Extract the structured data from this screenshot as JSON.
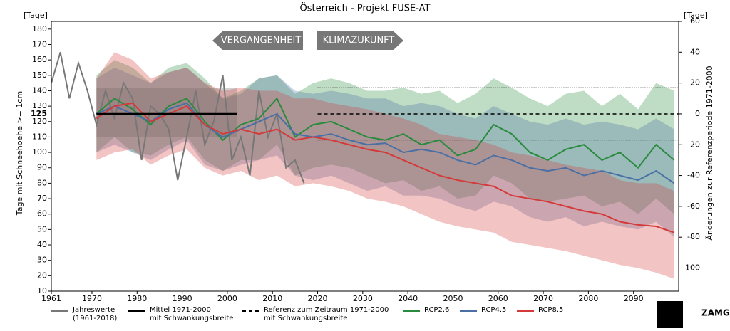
{
  "chart_data": {
    "type": "line",
    "title": "Österreich - Projekt FUSE-AT",
    "ylabel": "Tage mit Schneehoehe >= 1cm",
    "y2label": "Änderungen zur Referenzperiode 1971-2000",
    "yunit": "[Tage]",
    "y2unit": "[Tage]",
    "annotations": [
      "VERGANGENHEIT",
      "KLIMAZUKUNFT"
    ],
    "logo": "ZAMG",
    "xlim": [
      1961,
      2100
    ],
    "xticks": [
      1961,
      1970,
      1980,
      1990,
      2000,
      2010,
      2020,
      2030,
      2040,
      2050,
      2060,
      2070,
      2080,
      2090
    ],
    "ylim": [
      10,
      185
    ],
    "yticks": [
      10,
      20,
      30,
      40,
      50,
      60,
      70,
      80,
      90,
      100,
      110,
      120,
      130,
      140,
      150,
      160,
      170,
      180
    ],
    "y2lim": [
      -115,
      60
    ],
    "y2ticks": [
      -100,
      -80,
      -60,
      -40,
      -20,
      0,
      20,
      40,
      60
    ],
    "mean": {
      "name": "Mittel 1971-2000\nmit Schwankungsbreite",
      "color": "#000000",
      "x": [
        1971,
        2000
      ],
      "value": 125,
      "low": 110,
      "high": 142
    },
    "reference": {
      "name": "Referenz zum Zeitraum 1971-2000\nmit Schwankungsbreite",
      "color": "#000000",
      "x": [
        2020,
        2100
      ],
      "value": 125,
      "low": 108,
      "high": 142
    },
    "series": [
      {
        "name": "Jahreswerte\n(1961-2018)",
        "color": "#777777",
        "x": [
          1961,
          1963,
          1965,
          1967,
          1969,
          1971,
          1973,
          1975,
          1977,
          1979,
          1981,
          1983,
          1985,
          1987,
          1989,
          1991,
          1993,
          1995,
          1997,
          1999,
          2001,
          2003,
          2005,
          2007,
          2009,
          2011,
          2013,
          2015,
          2017
        ],
        "values": [
          145,
          165,
          135,
          158,
          140,
          118,
          140,
          122,
          145,
          135,
          95,
          130,
          125,
          115,
          82,
          110,
          140,
          105,
          120,
          150,
          95,
          110,
          85,
          140,
          110,
          125,
          90,
          95,
          80
        ]
      },
      {
        "name": "RCP2.6",
        "color": "#2a8a3e",
        "x": [
          1971,
          1975,
          1979,
          1983,
          1987,
          1991,
          1995,
          1999,
          2003,
          2007,
          2011,
          2015,
          2019,
          2023,
          2027,
          2031,
          2035,
          2039,
          2043,
          2047,
          2051,
          2055,
          2059,
          2063,
          2067,
          2071,
          2075,
          2079,
          2083,
          2087,
          2091,
          2095,
          2099
        ],
        "values": [
          125,
          135,
          128,
          118,
          130,
          135,
          120,
          108,
          118,
          122,
          135,
          110,
          118,
          120,
          115,
          110,
          108,
          112,
          105,
          108,
          98,
          102,
          118,
          112,
          100,
          95,
          102,
          105,
          95,
          100,
          90,
          105,
          95
        ],
        "low": [
          100,
          110,
          100,
          98,
          105,
          110,
          95,
          88,
          95,
          95,
          105,
          85,
          90,
          92,
          90,
          85,
          80,
          82,
          75,
          78,
          70,
          72,
          85,
          80,
          70,
          68,
          70,
          72,
          65,
          68,
          60,
          70,
          60
        ],
        "high": [
          150,
          160,
          155,
          145,
          155,
          158,
          148,
          135,
          140,
          148,
          150,
          138,
          145,
          148,
          145,
          140,
          140,
          142,
          138,
          140,
          132,
          138,
          148,
          142,
          135,
          130,
          138,
          140,
          130,
          138,
          128,
          145,
          140
        ]
      },
      {
        "name": "RCP4.5",
        "color": "#4a6fa5",
        "x": [
          1971,
          1975,
          1979,
          1983,
          1987,
          1991,
          1995,
          1999,
          2003,
          2007,
          2011,
          2015,
          2019,
          2023,
          2027,
          2031,
          2035,
          2039,
          2043,
          2047,
          2051,
          2055,
          2059,
          2063,
          2067,
          2071,
          2075,
          2079,
          2083,
          2087,
          2091,
          2095,
          2099
        ],
        "values": [
          125,
          130,
          125,
          120,
          128,
          132,
          118,
          110,
          115,
          120,
          125,
          112,
          110,
          112,
          108,
          105,
          106,
          100,
          102,
          100,
          95,
          92,
          98,
          95,
          90,
          88,
          90,
          85,
          88,
          85,
          82,
          88,
          80
        ],
        "low": [
          100,
          105,
          100,
          95,
          102,
          108,
          92,
          88,
          92,
          95,
          98,
          85,
          82,
          85,
          80,
          75,
          78,
          72,
          72,
          70,
          65,
          62,
          68,
          65,
          58,
          55,
          58,
          52,
          55,
          52,
          50,
          55,
          45
        ],
        "high": [
          148,
          155,
          150,
          145,
          152,
          155,
          145,
          135,
          138,
          148,
          150,
          140,
          138,
          140,
          138,
          135,
          135,
          130,
          132,
          130,
          125,
          122,
          130,
          125,
          120,
          118,
          122,
          118,
          120,
          118,
          115,
          122,
          115
        ]
      },
      {
        "name": "RCP8.5",
        "color": "#d43a3a",
        "x": [
          1971,
          1975,
          1979,
          1983,
          1987,
          1991,
          1995,
          1999,
          2003,
          2007,
          2011,
          2015,
          2019,
          2023,
          2027,
          2031,
          2035,
          2039,
          2043,
          2047,
          2051,
          2055,
          2059,
          2063,
          2067,
          2071,
          2075,
          2079,
          2083,
          2087,
          2091,
          2095,
          2099
        ],
        "values": [
          122,
          130,
          132,
          120,
          125,
          130,
          118,
          112,
          115,
          112,
          115,
          108,
          110,
          108,
          105,
          102,
          100,
          95,
          90,
          85,
          82,
          80,
          78,
          72,
          70,
          68,
          65,
          62,
          60,
          55,
          53,
          52,
          48
        ],
        "low": [
          95,
          100,
          102,
          92,
          98,
          102,
          90,
          85,
          88,
          82,
          85,
          78,
          80,
          78,
          75,
          70,
          68,
          65,
          60,
          55,
          52,
          50,
          48,
          42,
          40,
          38,
          36,
          33,
          30,
          27,
          25,
          22,
          18
        ],
        "high": [
          148,
          165,
          160,
          148,
          152,
          155,
          145,
          140,
          142,
          140,
          140,
          135,
          135,
          132,
          130,
          128,
          125,
          122,
          118,
          112,
          110,
          108,
          105,
          100,
          98,
          95,
          92,
          90,
          88,
          82,
          80,
          80,
          75
        ]
      }
    ]
  }
}
